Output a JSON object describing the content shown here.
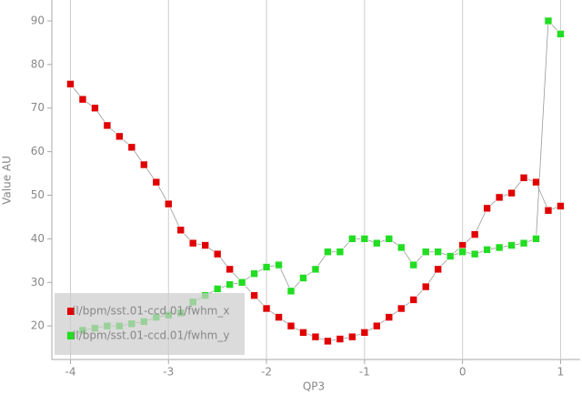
{
  "chart_data": {
    "type": "line",
    "xlabel": "QP3",
    "ylabel": "Value AU",
    "x": [
      -4,
      -3.875,
      -3.75,
      -3.625,
      -3.5,
      -3.375,
      -3.25,
      -3.125,
      -3,
      -2.875,
      -2.75,
      -2.625,
      -2.5,
      -2.375,
      -2.25,
      -2.125,
      -2,
      -1.875,
      -1.75,
      -1.625,
      -1.5,
      -1.375,
      -1.25,
      -1.125,
      -1,
      -0.875,
      -0.75,
      -0.625,
      -0.5,
      -0.375,
      -0.25,
      -0.125,
      0,
      0.125,
      0.25,
      0.375,
      0.5,
      0.625,
      0.75,
      0.875,
      1
    ],
    "series": [
      {
        "name": "il/bpm/sst.01-ccd.01/fwhm_x",
        "color": "#e00000",
        "values": [
          75.5,
          72,
          70,
          66,
          63.5,
          61,
          57,
          53,
          48,
          42,
          39,
          38.5,
          36.5,
          33,
          30,
          27,
          24,
          22,
          20,
          18.5,
          17.5,
          16.5,
          17,
          17.5,
          18.5,
          20,
          22,
          24,
          26,
          29,
          33,
          36,
          38.5,
          41,
          47,
          49.5,
          50.5,
          54,
          53,
          46.5,
          47.5
        ]
      },
      {
        "name": "il/bpm/sst.01-ccd.01/fwhm_y",
        "color": "#22dd22",
        "values": [
          18,
          19,
          19.5,
          20,
          20,
          20.5,
          21,
          22,
          22.5,
          23,
          25.5,
          27,
          28.5,
          29.5,
          30,
          32,
          33.5,
          34,
          28,
          31,
          33,
          37,
          37,
          40,
          40,
          39,
          40,
          38,
          34,
          37,
          37,
          36,
          37,
          36.5,
          37.5,
          38,
          38.5,
          39,
          40,
          90,
          87
        ]
      }
    ],
    "xlim": [
      -4.19,
      1.2
    ],
    "xticks": [
      -4,
      -3,
      -2,
      -1,
      0,
      1
    ],
    "ylim": [
      12.3,
      94.8
    ],
    "yticks": [
      20,
      30,
      40,
      50,
      60,
      70,
      80,
      90
    ],
    "grid": "x",
    "legend": "lower left"
  }
}
